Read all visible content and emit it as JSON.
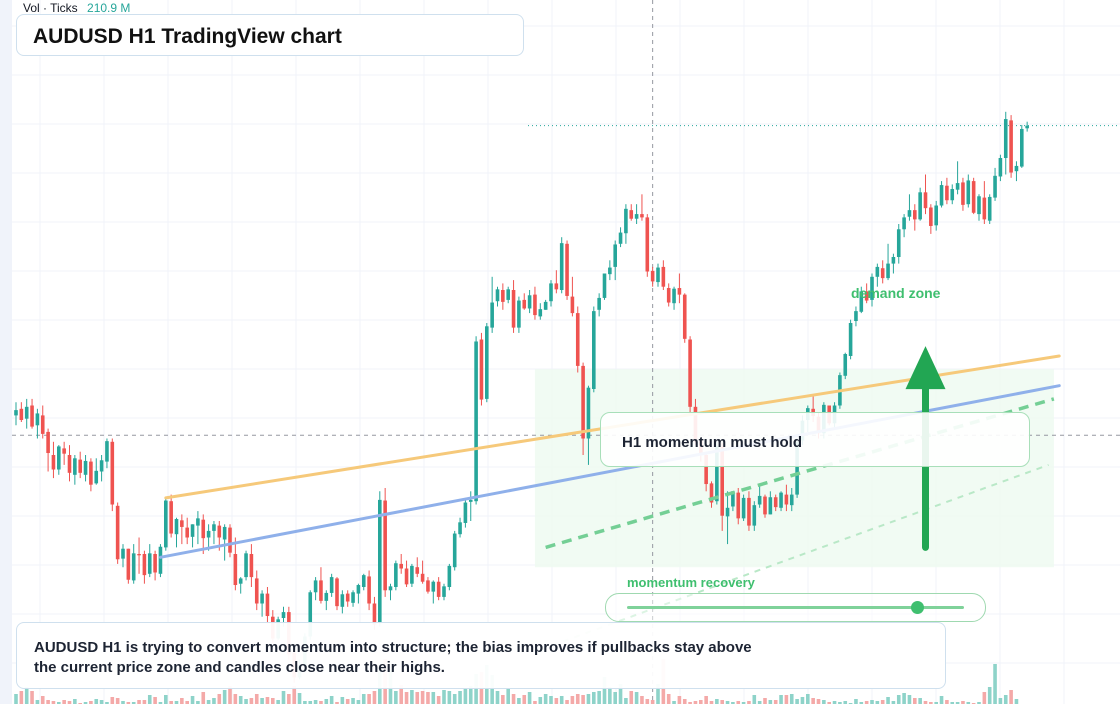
{
  "title": "AUDUSD H1 TradingView chart",
  "volume_legend": {
    "label": "Vol · Ticks",
    "value": "210.9 M"
  },
  "annotations": {
    "hold_note": "H1 momentum must hold",
    "zone_label": "demand zone",
    "momentum_label": "momentum recovery",
    "momentum_level": 0.86
  },
  "summary": "AUDUSD H1 is trying to convert momentum into structure; the bias improves if pullbacks stay above the current price zone and candles close near their highs.",
  "colors": {
    "up": "#26a69a",
    "down": "#ef5350",
    "vol_up": "#8ed3c9",
    "vol_down": "#f4a9a8",
    "orange_line": "#f6c97a",
    "blue_line": "#8fb0ea",
    "green": "#22a653",
    "zone_fill": "#eefaf0"
  },
  "chart_data": {
    "type": "candlestick",
    "symbol": "AUDUSD",
    "timeframe": "H1",
    "price_unit": "relative price (0-100)",
    "ohlc": [
      [
        41.0,
        43.0,
        39.5,
        41.8
      ],
      [
        42.0,
        43.0,
        40.0,
        40.3
      ],
      [
        40.5,
        43.5,
        39.0,
        42.3
      ],
      [
        42.5,
        43.5,
        39.0,
        39.3
      ],
      [
        39.5,
        42.0,
        37.5,
        41.3
      ],
      [
        41.0,
        42.5,
        37.5,
        38.2
      ],
      [
        38.5,
        39.0,
        32.5,
        35.3
      ],
      [
        35.0,
        37.0,
        31.5,
        32.8
      ],
      [
        32.8,
        36.5,
        32.0,
        36.3
      ],
      [
        36.0,
        37.0,
        33.5,
        35.2
      ],
      [
        35.0,
        36.5,
        31.0,
        32.3
      ],
      [
        32.0,
        35.0,
        30.5,
        34.5
      ],
      [
        34.3,
        35.5,
        31.5,
        32.3
      ],
      [
        32.0,
        35.0,
        31.0,
        34.1
      ],
      [
        34.0,
        34.5,
        29.5,
        30.5
      ],
      [
        30.7,
        34.5,
        30.5,
        32.6
      ],
      [
        32.5,
        35.0,
        31.0,
        34.2
      ],
      [
        34.0,
        37.5,
        33.0,
        37.1
      ],
      [
        37.0,
        37.5,
        26.5,
        27.5
      ],
      [
        27.3,
        27.8,
        18.5,
        19.2
      ],
      [
        19.3,
        21.5,
        18.0,
        20.8
      ],
      [
        20.8,
        20.8,
        15.5,
        16.1
      ],
      [
        16.0,
        21.5,
        15.5,
        20.1
      ],
      [
        20.0,
        22.5,
        17.0,
        19.8
      ],
      [
        20.0,
        20.5,
        15.5,
        16.8
      ],
      [
        17.0,
        21.5,
        16.5,
        20.1
      ],
      [
        20.0,
        20.5,
        16.0,
        17.2
      ],
      [
        17.0,
        21.5,
        16.5,
        21.1
      ],
      [
        21.0,
        28.5,
        20.5,
        28.1
      ],
      [
        28.0,
        29.0,
        22.5,
        23.1
      ],
      [
        23.0,
        25.5,
        21.0,
        25.3
      ],
      [
        25.1,
        26.0,
        21.5,
        24.1
      ],
      [
        24.0,
        25.5,
        21.5,
        22.5
      ],
      [
        22.6,
        24.5,
        21.0,
        24.5
      ],
      [
        24.3,
        26.5,
        21.5,
        25.4
      ],
      [
        25.2,
        26.0,
        20.0,
        22.4
      ],
      [
        22.5,
        24.5,
        20.5,
        23.5
      ],
      [
        23.5,
        25.0,
        21.5,
        24.5
      ],
      [
        24.3,
        25.0,
        20.5,
        22.5
      ],
      [
        22.2,
        24.5,
        19.0,
        24.1
      ],
      [
        24.0,
        24.5,
        19.5,
        20.2
      ],
      [
        20.0,
        22.5,
        14.5,
        15.3
      ],
      [
        15.5,
        16.5,
        14.0,
        16.3
      ],
      [
        16.5,
        20.5,
        16.0,
        20.1
      ],
      [
        20.0,
        21.5,
        15.0,
        16.5
      ],
      [
        16.3,
        17.5,
        11.5,
        12.5
      ],
      [
        12.5,
        14.5,
        10.5,
        14.0
      ],
      [
        14.0,
        15.0,
        9.5,
        10.6
      ],
      [
        10.5,
        11.5,
        6.5,
        7.2
      ],
      [
        7.2,
        10.5,
        7.0,
        10.1
      ],
      [
        10.3,
        12.0,
        9.0,
        11.2
      ],
      [
        11.2,
        12.0,
        4.0,
        4.8
      ],
      [
        5.0,
        5.5,
        0.5,
        1.3
      ],
      [
        1.3,
        4.0,
        1.0,
        3.1
      ],
      [
        3.0,
        8.0,
        3.0,
        7.5
      ],
      [
        7.5,
        14.5,
        7.0,
        14.2
      ],
      [
        14.2,
        16.5,
        13.0,
        16.0
      ],
      [
        16.0,
        18.0,
        12.5,
        12.9
      ],
      [
        12.9,
        14.5,
        11.5,
        14.1
      ],
      [
        14.1,
        17.0,
        13.5,
        16.5
      ],
      [
        16.3,
        16.5,
        11.5,
        12.1
      ],
      [
        12.0,
        14.5,
        11.0,
        13.9
      ],
      [
        14.0,
        14.5,
        12.0,
        12.8
      ],
      [
        12.6,
        14.5,
        12.0,
        14.2
      ],
      [
        14.0,
        15.5,
        12.5,
        15.3
      ],
      [
        15.0,
        17.0,
        14.5,
        16.8
      ],
      [
        16.6,
        17.5,
        11.5,
        12.5
      ],
      [
        12.5,
        13.5,
        8.5,
        9.3
      ],
      [
        9.5,
        29.5,
        9.0,
        28.2
      ],
      [
        28.1,
        30.0,
        13.5,
        14.5
      ],
      [
        14.5,
        15.5,
        13.0,
        15.1
      ],
      [
        15.0,
        19.0,
        14.5,
        18.6
      ],
      [
        18.5,
        20.0,
        17.0,
        17.8
      ],
      [
        17.8,
        19.0,
        15.0,
        15.4
      ],
      [
        15.5,
        18.5,
        15.0,
        18.2
      ],
      [
        18.0,
        19.5,
        16.5,
        17.0
      ],
      [
        17.0,
        19.0,
        15.5,
        15.8
      ],
      [
        16.0,
        16.5,
        14.0,
        14.3
      ],
      [
        14.3,
        16.0,
        12.5,
        15.8
      ],
      [
        15.8,
        16.5,
        13.0,
        13.5
      ],
      [
        13.5,
        15.5,
        13.0,
        15.1
      ],
      [
        15.0,
        18.5,
        14.5,
        18.2
      ],
      [
        18.0,
        23.5,
        17.5,
        23.1
      ],
      [
        23.0,
        25.5,
        22.5,
        24.8
      ],
      [
        24.7,
        28.5,
        24.0,
        27.8
      ],
      [
        27.9,
        29.5,
        25.0,
        28.2
      ],
      [
        28.0,
        53.0,
        27.5,
        52.2
      ],
      [
        52.5,
        53.5,
        42.5,
        43.4
      ],
      [
        43.5,
        55.0,
        43.0,
        54.5
      ],
      [
        54.3,
        62.0,
        53.5,
        58.1
      ],
      [
        58.3,
        60.5,
        57.5,
        60.1
      ],
      [
        60.0,
        61.0,
        57.0,
        58.2
      ],
      [
        58.5,
        60.5,
        58.0,
        60.1
      ],
      [
        60.0,
        61.5,
        53.5,
        54.3
      ],
      [
        54.3,
        59.0,
        53.5,
        58.4
      ],
      [
        58.5,
        59.5,
        57.0,
        57.2
      ],
      [
        57.2,
        60.0,
        56.5,
        59.2
      ],
      [
        59.3,
        60.5,
        55.5,
        56.2
      ],
      [
        56.0,
        58.0,
        55.5,
        57.1
      ],
      [
        57.0,
        58.5,
        57.0,
        58.2
      ],
      [
        58.3,
        61.5,
        57.5,
        61.0
      ],
      [
        61.0,
        63.0,
        59.5,
        60.1
      ],
      [
        60.0,
        68.0,
        59.5,
        67.1
      ],
      [
        67.0,
        67.5,
        58.5,
        59.1
      ],
      [
        59.0,
        62.0,
        56.0,
        56.5
      ],
      [
        56.5,
        57.5,
        47.5,
        48.5
      ],
      [
        48.5,
        49.0,
        35.0,
        37.5
      ],
      [
        37.5,
        45.5,
        33.5,
        45.2
      ],
      [
        45.0,
        57.5,
        44.5,
        56.8
      ],
      [
        57.0,
        59.5,
        56.0,
        58.8
      ],
      [
        58.8,
        62.5,
        58.5,
        62.5
      ],
      [
        62.4,
        64.5,
        61.5,
        63.4
      ],
      [
        63.5,
        67.5,
        61.5,
        66.9
      ],
      [
        67.0,
        69.5,
        66.5,
        68.7
      ],
      [
        68.6,
        73.0,
        67.0,
        72.3
      ],
      [
        72.1,
        73.0,
        70.5,
        70.8
      ],
      [
        70.8,
        73.0,
        70.0,
        71.5
      ],
      [
        71.5,
        74.5,
        70.5,
        71.0
      ],
      [
        71.0,
        71.5,
        62.0,
        62.8
      ],
      [
        62.9,
        63.5,
        60.5,
        61.3
      ],
      [
        61.2,
        64.0,
        60.5,
        63.4
      ],
      [
        63.5,
        64.5,
        60.0,
        60.5
      ],
      [
        60.3,
        61.0,
        57.5,
        58.1
      ],
      [
        58.0,
        60.5,
        57.0,
        60.2
      ],
      [
        60.3,
        62.5,
        58.0,
        59.3
      ],
      [
        59.3,
        59.5,
        52.0,
        52.6
      ],
      [
        52.5,
        53.0,
        41.5,
        42.3
      ],
      [
        42.3,
        43.5,
        36.5,
        37.0
      ],
      [
        37.2,
        37.5,
        34.0,
        35.0
      ],
      [
        35.0,
        35.5,
        29.5,
        30.6
      ],
      [
        30.7,
        31.0,
        27.0,
        27.8
      ],
      [
        28.0,
        37.0,
        27.5,
        36.4
      ],
      [
        36.2,
        36.8,
        23.5,
        25.8
      ],
      [
        25.7,
        29.5,
        21.5,
        27.0
      ],
      [
        27.2,
        29.5,
        26.5,
        29.5
      ],
      [
        29.3,
        30.0,
        24.5,
        25.4
      ],
      [
        25.4,
        29.0,
        25.0,
        28.5
      ],
      [
        28.5,
        29.5,
        23.5,
        24.3
      ],
      [
        24.3,
        28.0,
        23.5,
        27.4
      ],
      [
        27.5,
        30.5,
        27.0,
        28.8
      ],
      [
        28.7,
        29.0,
        25.5,
        26.0
      ],
      [
        26.0,
        29.5,
        26.0,
        28.6
      ],
      [
        28.6,
        29.0,
        26.5,
        27.1
      ],
      [
        27.0,
        29.5,
        26.5,
        29.3
      ],
      [
        29.0,
        30.5,
        26.5,
        27.5
      ],
      [
        27.4,
        30.0,
        26.5,
        29.0
      ],
      [
        29.0,
        37.5,
        28.5,
        37.0
      ],
      [
        37.2,
        41.0,
        36.5,
        40.2
      ],
      [
        40.3,
        42.5,
        38.5,
        42.1
      ],
      [
        42.0,
        44.0,
        40.0,
        40.9
      ],
      [
        40.8,
        41.5,
        37.5,
        38.3
      ],
      [
        38.3,
        43.0,
        37.5,
        42.6
      ],
      [
        42.5,
        42.5,
        39.5,
        39.8
      ],
      [
        39.8,
        43.0,
        39.0,
        42.5
      ],
      [
        42.5,
        47.5,
        42.0,
        47.1
      ],
      [
        47.0,
        50.5,
        46.5,
        50.3
      ],
      [
        50.0,
        55.5,
        49.5,
        55.0
      ],
      [
        55.3,
        57.5,
        54.5,
        56.8
      ],
      [
        56.7,
        60.5,
        56.5,
        59.8
      ],
      [
        59.8,
        61.0,
        58.0,
        58.4
      ],
      [
        58.5,
        62.5,
        57.5,
        62.0
      ],
      [
        62.0,
        64.0,
        60.5,
        63.5
      ],
      [
        63.3,
        64.5,
        61.0,
        61.8
      ],
      [
        61.8,
        67.0,
        61.5,
        64.0
      ],
      [
        64.0,
        65.5,
        62.5,
        65.0
      ],
      [
        65.0,
        70.0,
        64.0,
        69.2
      ],
      [
        69.2,
        71.5,
        68.0,
        71.0
      ],
      [
        71.1,
        74.5,
        70.5,
        72.1
      ],
      [
        72.1,
        73.0,
        69.0,
        70.7
      ],
      [
        70.7,
        75.5,
        70.5,
        74.8
      ],
      [
        74.8,
        77.5,
        71.5,
        72.4
      ],
      [
        72.5,
        73.0,
        68.5,
        69.7
      ],
      [
        69.8,
        73.5,
        69.0,
        72.8
      ],
      [
        72.8,
        76.5,
        72.5,
        75.9
      ],
      [
        75.8,
        77.0,
        73.0,
        73.6
      ],
      [
        73.6,
        76.0,
        73.0,
        75.3
      ],
      [
        75.2,
        79.5,
        74.5,
        76.2
      ],
      [
        76.3,
        77.0,
        72.0,
        72.9
      ],
      [
        73.0,
        77.5,
        72.5,
        76.6
      ],
      [
        76.5,
        77.0,
        71.5,
        71.7
      ],
      [
        71.5,
        74.5,
        70.5,
        74.2
      ],
      [
        74.0,
        76.5,
        70.0,
        70.7
      ],
      [
        70.5,
        74.5,
        70.0,
        74.1
      ],
      [
        74.0,
        78.5,
        73.5,
        77.3
      ],
      [
        77.2,
        80.5,
        76.5,
        80.0
      ],
      [
        80.0,
        87.0,
        77.5,
        85.9
      ],
      [
        85.7,
        86.5,
        77.0,
        77.8
      ],
      [
        78.0,
        79.5,
        76.5,
        78.8
      ],
      [
        78.7,
        85.0,
        78.5,
        84.4
      ],
      [
        84.5,
        85.5,
        84.0,
        84.9
      ]
    ],
    "volume": [
      1.0,
      1.3,
      1.7,
      1.3,
      0.4,
      0.8,
      0.4,
      0.3,
      0.2,
      0.4,
      0.3,
      0.5,
      0.1,
      0.2,
      0.3,
      0.5,
      0.4,
      0.2,
      0.7,
      0.6,
      0.3,
      0.2,
      0.2,
      0.4,
      0.4,
      0.9,
      0.7,
      0.2,
      0.9,
      0.3,
      0.3,
      0.6,
      0.3,
      0.8,
      0.3,
      1.2,
      0.4,
      0.6,
      1.0,
      1.4,
      1.8,
      1.0,
      0.8,
      0.5,
      0.6,
      1.0,
      0.6,
      0.7,
      0.6,
      0.4,
      1.3,
      1.0,
      1.8,
      1.1,
      0.3,
      0.3,
      0.4,
      0.3,
      0.5,
      0.8,
      0.2,
      0.7,
      0.5,
      0.6,
      0.4,
      1.0,
      1.0,
      1.3,
      3.7,
      4.5,
      3.4,
      1.3,
      1.9,
      1.2,
      1.4,
      1.2,
      1.3,
      1.2,
      1.2,
      0.8,
      1.4,
      1.3,
      1.0,
      1.3,
      1.5,
      1.8,
      3.0,
      3.2,
      3.9,
      2.9,
      1.3,
      0.9,
      1.5,
      1.0,
      0.6,
      0.9,
      1.2,
      0.3,
      0.7,
      1.0,
      0.8,
      0.6,
      0.8,
      0.4,
      0.8,
      1.0,
      0.9,
      1.0,
      1.2,
      1.3,
      2.7,
      1.7,
      1.2,
      2.0,
      0.6,
      1.3,
      1.2,
      0.8,
      0.5,
      0.4,
      2.0,
      4.5,
      1.0,
      0.3,
      0.8,
      0.5,
      0.2,
      0.3,
      0.4,
      0.8,
      0.3,
      0.5,
      0.4,
      0.3,
      0.2,
      0.3,
      0.2,
      0.3,
      0.9,
      0.3,
      0.6,
      0.4,
      0.4,
      0.9,
      0.9,
      1.0,
      0.5,
      0.7,
      1.0,
      0.6,
      0.5,
      0.4,
      0.2,
      0.3,
      0.2,
      0.3,
      0.1,
      0.5,
      0.2,
      0.3,
      0.4,
      0.3,
      0.4,
      0.7,
      0.3,
      0.9,
      1.1,
      0.9,
      0.6,
      0.6,
      0.3,
      0.2,
      0.2,
      0.8,
      0.4,
      0.2,
      0.2,
      0.3,
      0.2,
      0.1,
      0.2,
      1.2,
      1.7,
      4.0,
      0.6,
      0.9,
      1.4,
      0.5
    ],
    "levels": {
      "horizontal_dashed": 38.0,
      "last_price_dotted": 84.9
    },
    "trendlines": [
      {
        "color": "orange",
        "from": {
          "index": 28,
          "price": 28.5
        },
        "to": {
          "index": 195,
          "price": 50.0
        }
      },
      {
        "color": "blue",
        "from": {
          "index": 27,
          "price": 19.5
        },
        "to": {
          "index": 195,
          "price": 45.5
        }
      }
    ],
    "projections": [
      {
        "style": "dashed-green",
        "from": {
          "index": 99,
          "price": 21.0
        },
        "to": {
          "index": 194,
          "price": 43.5
        }
      },
      {
        "style": "dashed-light-green",
        "from": {
          "index": 98,
          "price": 5.5
        },
        "to": {
          "index": 193,
          "price": 33.5
        }
      }
    ],
    "zone": {
      "from_index": 97,
      "to_index": 194,
      "price_low": 18.0,
      "price_high": 48.0
    },
    "arrow": {
      "index": 170,
      "from_price": 21.0,
      "to_price": 51.5
    },
    "vertical_crosshair_index": 119
  }
}
